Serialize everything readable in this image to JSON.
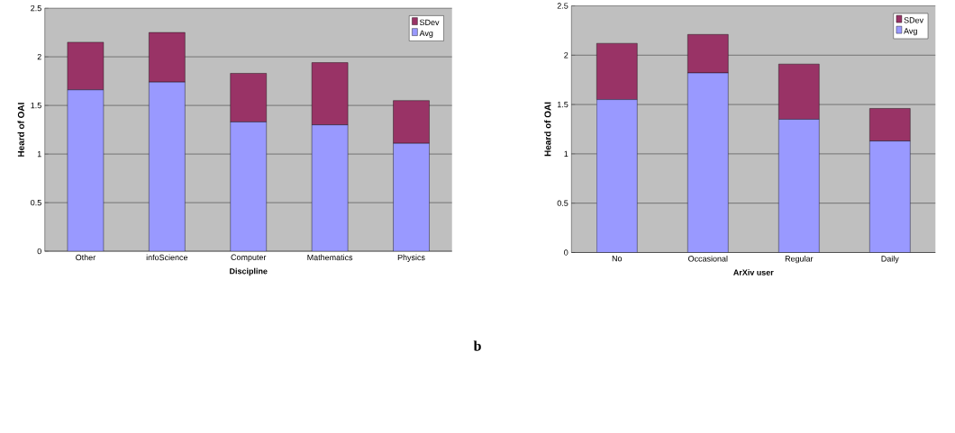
{
  "chart_data": [
    {
      "type": "bar",
      "stacked": true,
      "categories": [
        "Other",
        "infoScience",
        "Computer",
        "Mathematics",
        "Physics"
      ],
      "series": [
        {
          "name": "Avg",
          "color": "#9999ff",
          "values": [
            1.66,
            1.74,
            1.33,
            1.3,
            1.11
          ]
        },
        {
          "name": "SDev",
          "color": "#993366",
          "values": [
            0.49,
            0.51,
            0.5,
            0.64,
            0.44
          ]
        }
      ],
      "ylim": [
        0,
        2.5
      ],
      "yticks": [
        0,
        0.5,
        1,
        1.5,
        2,
        2.5
      ],
      "xlabel": "Discipline",
      "ylabel": "Heard of OAI",
      "grid": "y",
      "legend": "top right",
      "annotations": [
        "b"
      ]
    },
    {
      "type": "bar",
      "stacked": true,
      "categories": [
        "No",
        "Occasional",
        "Regular",
        "Daily"
      ],
      "series": [
        {
          "name": "Avg",
          "color": "#9999ff",
          "values": [
            1.55,
            1.82,
            1.35,
            1.13
          ]
        },
        {
          "name": "SDev",
          "color": "#993366",
          "values": [
            0.57,
            0.39,
            0.56,
            0.33
          ]
        }
      ],
      "ylim": [
        0,
        2.5
      ],
      "yticks": [
        0,
        0.5,
        1,
        1.5,
        2,
        2.5
      ],
      "xlabel": "ArXiv user",
      "ylabel": "Heard of OAI",
      "grid": "y",
      "legend": "top right"
    }
  ]
}
